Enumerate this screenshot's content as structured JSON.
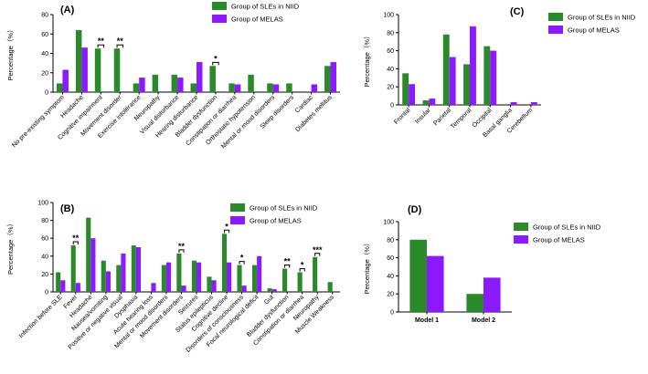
{
  "colors": {
    "niid": "#2a8a2a",
    "melas": "#8b1aff"
  },
  "chart_data": [
    {
      "id": "A",
      "type": "bar",
      "title": "(A)",
      "ylabel": "Percentage（%）",
      "ylim": [
        0,
        80
      ],
      "yticks": [
        0,
        20,
        40,
        60,
        80
      ],
      "legend_position": "top-right",
      "categories": [
        "No pre-existing symptom",
        "Headache",
        "Cognitive impairment",
        "Movement disorder",
        "Exercise intolerance",
        "Neuropathy",
        "Visual disturbance",
        "Hearing disturbance",
        "Bladder dysfunction",
        "Constipation or diarrhea",
        "Orthostatic hypotension",
        "Mental or mood disorders",
        "Sleep disorders",
        "Cardiac",
        "Diabetes mellitus"
      ],
      "series": [
        {
          "name": "Group of SLEs in NIID",
          "color_key": "niid",
          "values": [
            9,
            64,
            45,
            45,
            9,
            18,
            18,
            9,
            27,
            9,
            18,
            9,
            9,
            0,
            27
          ]
        },
        {
          "name": "Group of MELAS",
          "color_key": "melas",
          "values": [
            23,
            46,
            0,
            0,
            15,
            0,
            15,
            31,
            0,
            8,
            0,
            8,
            0,
            8,
            31
          ]
        }
      ],
      "annotations": [
        {
          "label": "**",
          "index": 2
        },
        {
          "label": "**",
          "index": 3
        },
        {
          "label": "*",
          "index": 8
        }
      ]
    },
    {
      "id": "B",
      "type": "bar",
      "title": "(B)",
      "ylabel": "Percentage（%）",
      "ylim": [
        0,
        100
      ],
      "yticks": [
        0,
        20,
        40,
        60,
        80,
        100
      ],
      "legend_position": "top-right",
      "categories": [
        "Infection before SLE",
        "Fever",
        "Headache",
        "Nausea/vomiting",
        "Positive or negative visual",
        "Dysphasia",
        "Acute hearing loss",
        "Mental or mood disorders",
        "Movement disorders",
        "Seizures",
        "Status epilepticus",
        "Cognitive decline",
        "Disorders of consciousness",
        "Focal neurological deficit",
        "Gut",
        "Bladder dysfunction",
        "Constipation or diarrhea",
        "Neuropathy",
        "Muscle Weakness"
      ],
      "series": [
        {
          "name": "Group of SLEs in NIID",
          "color_key": "niid",
          "values": [
            22,
            52,
            83,
            35,
            30,
            52,
            0,
            30,
            43,
            35,
            17,
            65,
            30,
            30,
            4,
            26,
            22,
            39,
            11
          ]
        },
        {
          "name": "Group of MELAS",
          "color_key": "melas",
          "values": [
            13,
            10,
            60,
            23,
            43,
            50,
            10,
            33,
            7,
            33,
            13,
            33,
            7,
            40,
            3,
            0,
            0,
            0,
            0
          ]
        }
      ],
      "annotations": [
        {
          "label": "**",
          "index": 1
        },
        {
          "label": "**",
          "index": 8
        },
        {
          "label": "*",
          "index": 11
        },
        {
          "label": "*",
          "index": 12
        },
        {
          "label": "**",
          "index": 15
        },
        {
          "label": "*",
          "index": 16
        },
        {
          "label": "***",
          "index": 17
        }
      ]
    },
    {
      "id": "C",
      "type": "bar",
      "title": "(C)",
      "ylabel": "Percentage（%）",
      "ylim": [
        0,
        100
      ],
      "yticks": [
        0,
        20,
        40,
        60,
        80,
        100
      ],
      "legend_position": "top-right",
      "categories": [
        "Frontal",
        "Insular",
        "Parietal",
        "Temporal",
        "Occipital",
        "Basal ganglia",
        "Cerebellum"
      ],
      "series": [
        {
          "name": "Group of SLEs in NIID",
          "color_key": "niid",
          "values": [
            35,
            5,
            78,
            45,
            65,
            0,
            0
          ]
        },
        {
          "name": "Group of MELAS",
          "color_key": "melas",
          "values": [
            23,
            7,
            53,
            87,
            60,
            3,
            3
          ]
        }
      ],
      "annotations": []
    },
    {
      "id": "D",
      "type": "bar",
      "title": "(D)",
      "ylabel": "Percentage（%）",
      "ylim": [
        0,
        100
      ],
      "yticks": [
        0,
        20,
        40,
        60,
        80,
        100
      ],
      "legend_position": "top-right",
      "categories": [
        "Model 1",
        "Model 2"
      ],
      "series": [
        {
          "name": "Group of SLEs in NIID",
          "color_key": "niid",
          "values": [
            80,
            20
          ]
        },
        {
          "name": "Group of MELAS",
          "color_key": "melas",
          "values": [
            62,
            38
          ]
        }
      ],
      "annotations": []
    }
  ]
}
